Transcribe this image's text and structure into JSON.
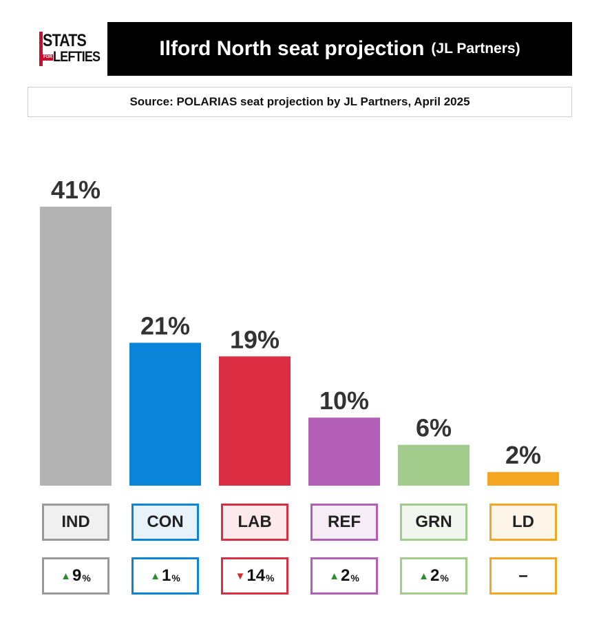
{
  "logo": {
    "line1": "STATS",
    "line2_small": "FOR",
    "line2": "LEFTIES"
  },
  "title": {
    "main": "Ilford North seat projection",
    "sub": "(JL Partners)"
  },
  "source": "Source: POLARIAS seat projection by JL Partners, April 2025",
  "chart_data": {
    "type": "bar",
    "title": "Ilford North seat projection (JL Partners)",
    "subtitle": "Source: POLARIAS seat projection by JL Partners, April 2025",
    "categories": [
      "IND",
      "CON",
      "LAB",
      "REF",
      "GRN",
      "LD"
    ],
    "values": [
      41,
      21,
      19,
      10,
      6,
      2
    ],
    "value_labels": [
      "41%",
      "21%",
      "19%",
      "10%",
      "6%",
      "2%"
    ],
    "unit": "%",
    "ylim": [
      0,
      41
    ],
    "colors": [
      "#b3b3b3",
      "#0a84d8",
      "#dc2e42",
      "#b25eb7",
      "#a3cb8c",
      "#f4a623"
    ],
    "label_bg": [
      "#f0f0f0",
      "#e7f2fb",
      "#fbe9eb",
      "#f5ecf6",
      "#f1f7ee",
      "#fdf5e8"
    ],
    "changes": [
      {
        "dir": "up",
        "value": "9",
        "unit": "%"
      },
      {
        "dir": "up",
        "value": "1",
        "unit": "%"
      },
      {
        "dir": "down",
        "value": "14",
        "unit": "%"
      },
      {
        "dir": "up",
        "value": "2",
        "unit": "%"
      },
      {
        "dir": "up",
        "value": "2",
        "unit": "%"
      },
      {
        "dir": "none",
        "value": "–",
        "unit": ""
      }
    ],
    "grid": false,
    "legend": "none"
  },
  "arrow_colors": {
    "up": "#2e8b2e",
    "down": "#d62b2b"
  }
}
